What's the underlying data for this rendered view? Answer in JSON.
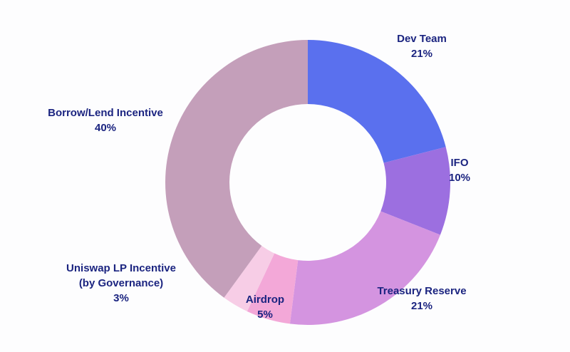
{
  "chart_data": {
    "type": "pie",
    "variant": "donut",
    "title": "",
    "labels": [
      "Dev Team",
      "IFO",
      "Treasury Reserve",
      "Airdrop",
      "Uniswap LP Incentive\n(by Governance)",
      "Borrow/Lend Incentive"
    ],
    "values": [
      21,
      10,
      21,
      5,
      3,
      40
    ],
    "percent_labels": [
      "21%",
      "10%",
      "21%",
      "5%",
      "3%",
      "40%"
    ],
    "unit": "%",
    "colors": [
      "#5a70ee",
      "#9c6fe0",
      "#d494e0",
      "#f3a8d8",
      "#f7cde6",
      "#c49fba"
    ],
    "start_angle_deg": 0,
    "direction": "clockwise",
    "inner_radius_ratio": 0.55,
    "legend": "none",
    "label_style": "outside",
    "label_color": "#1b2480",
    "background": "#fdfdfe"
  }
}
